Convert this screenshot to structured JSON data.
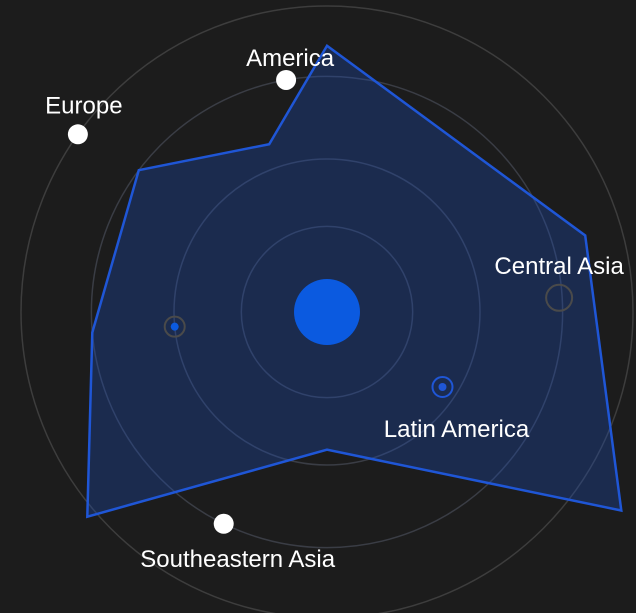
{
  "chart_data": {
    "type": "radar-bubble",
    "colors": {
      "background": "#1c1c1c",
      "series_fill": "#1a4fc4",
      "series_stroke": "#1f56d6",
      "center": "#0b5ae0",
      "ring": "#3a3d45",
      "marker_white": "#ffffff",
      "marker_gray": "#4a4a4a"
    },
    "series": [
      {
        "points": [
          {
            "angle_deg": 0,
            "radius": 0.87
          },
          {
            "angle_deg": 73.5,
            "radius": 0.88
          },
          {
            "angle_deg": 124,
            "radius": 1.16
          },
          {
            "angle_deg": 180,
            "radius": 0.45
          },
          {
            "angle_deg": 229.5,
            "radius": 1.03
          },
          {
            "angle_deg": 265,
            "radius": 0.77
          },
          {
            "angle_deg": 307,
            "radius": 0.77
          },
          {
            "angle_deg": 341,
            "radius": 0.58
          }
        ]
      }
    ],
    "bubbles": [
      {
        "label": "America",
        "angle_deg": 350,
        "radius": 0.77,
        "style": "white"
      },
      {
        "label": "Central Asia",
        "angle_deg": 86.5,
        "radius": 0.76,
        "style": "gray-ring"
      },
      {
        "label": "Latin America",
        "angle_deg": 123,
        "radius": 0.45,
        "style": "blue-ring"
      },
      {
        "label": "Southeastern Asia",
        "angle_deg": 206,
        "radius": 0.77,
        "style": "white"
      },
      {
        "label": "",
        "angle_deg": 264.5,
        "radius": 0.5,
        "style": "blue-dot-gray-ring"
      },
      {
        "label": "Europe",
        "angle_deg": 305.5,
        "radius": 1.0,
        "style": "white"
      }
    ],
    "rings": [
      0.28,
      0.5,
      0.77,
      1.0
    ]
  }
}
